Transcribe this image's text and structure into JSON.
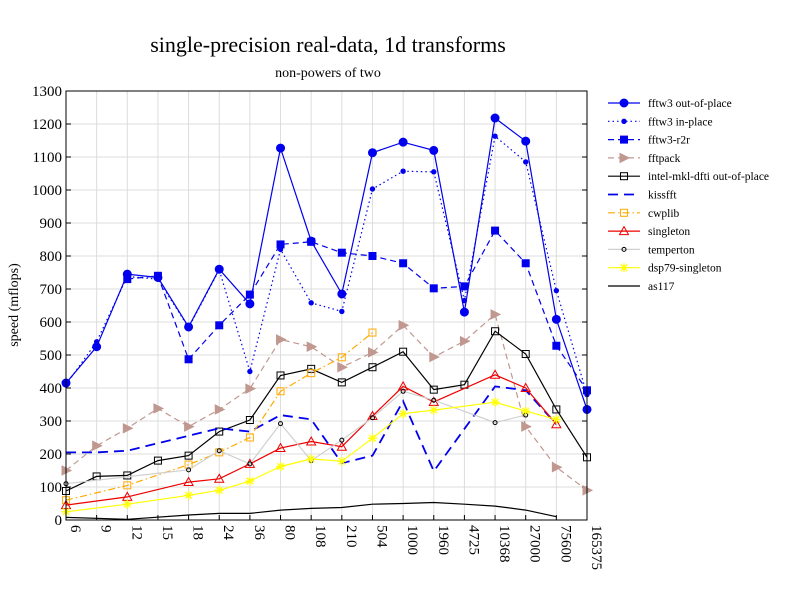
{
  "chart_data": {
    "type": "line",
    "title": "single-precision real-data, 1d transforms",
    "subtitle": "non-powers of two",
    "xlabel": "",
    "ylabel": "speed (mflops)",
    "ylim": [
      0,
      1300
    ],
    "yticks": [
      0,
      100,
      200,
      300,
      400,
      500,
      600,
      700,
      800,
      900,
      1000,
      1100,
      1200,
      1300
    ],
    "grid": true,
    "legend_position": "right",
    "categories": [
      "6",
      "9",
      "12",
      "15",
      "18",
      "24",
      "36",
      "80",
      "108",
      "210",
      "504",
      "1000",
      "1960",
      "4725",
      "10368",
      "27000",
      "75600",
      "165375"
    ],
    "series": [
      {
        "name": "fftw3 out-of-place",
        "color": "#0000ee",
        "dash": "solid",
        "marker": "circle-filled",
        "values": [
          415,
          525,
          745,
          735,
          585,
          760,
          655,
          1127,
          845,
          685,
          1113,
          1145,
          1120,
          630,
          1218,
          1148,
          608,
          335
        ]
      },
      {
        "name": "fftw3 in-place",
        "color": "#0000ee",
        "dash": "dot",
        "marker": "dot",
        "values": [
          410,
          540,
          738,
          730,
          583,
          758,
          450,
          820,
          658,
          632,
          1003,
          1057,
          1055,
          665,
          1163,
          1085,
          695,
          380
        ]
      },
      {
        "name": "fftw3-r2r",
        "color": "#0000ee",
        "dash": "dash",
        "marker": "square-filled",
        "values": [
          null,
          null,
          730,
          740,
          487,
          590,
          683,
          835,
          843,
          810,
          800,
          778,
          702,
          708,
          877,
          778,
          528,
          393
        ]
      },
      {
        "name": "fftpack",
        "color": "#c09890",
        "dash": "dash",
        "marker": "triangle-right",
        "values": [
          150,
          225,
          278,
          338,
          283,
          335,
          398,
          547,
          525,
          463,
          508,
          590,
          494,
          542,
          623,
          283,
          160,
          90
        ]
      },
      {
        "name": "intel-mkl-dfti out-of-place",
        "color": "#000000",
        "dash": "solid",
        "marker": "square-open",
        "values": [
          88,
          132,
          135,
          180,
          195,
          268,
          303,
          438,
          458,
          417,
          463,
          510,
          395,
          410,
          572,
          503,
          335,
          190
        ]
      },
      {
        "name": "kissfft",
        "color": "#0000ee",
        "dash": "longdash",
        "marker": "none",
        "values": [
          205,
          205,
          210,
          null,
          null,
          278,
          268,
          318,
          305,
          172,
          195,
          360,
          148,
          null,
          405,
          393,
          290,
          null
        ]
      },
      {
        "name": "cwplib",
        "color": "#ffaa00",
        "dash": "dashdot",
        "marker": "square-open",
        "values": [
          60,
          null,
          105,
          null,
          168,
          205,
          250,
          390,
          445,
          493,
          568,
          null,
          null,
          null,
          null,
          null,
          null,
          null
        ]
      },
      {
        "name": "singleton",
        "color": "#ee0000",
        "dash": "solid",
        "marker": "triangle-open",
        "values": [
          45,
          null,
          70,
          null,
          115,
          125,
          170,
          218,
          238,
          222,
          315,
          405,
          358,
          null,
          440,
          400,
          290,
          null
        ]
      },
      {
        "name": "temperton",
        "color": "#d0d0d0",
        "dash": "solid",
        "marker": "circle-open",
        "values": [
          110,
          null,
          null,
          null,
          152,
          210,
          170,
          292,
          180,
          242,
          310,
          390,
          363,
          null,
          295,
          318,
          null,
          null
        ]
      },
      {
        "name": "dsp79-singleton",
        "color": "#ffff00",
        "dash": "solid",
        "marker": "asterisk",
        "values": [
          25,
          null,
          48,
          null,
          75,
          90,
          118,
          162,
          185,
          178,
          248,
          322,
          333,
          null,
          357,
          330,
          305,
          null
        ]
      },
      {
        "name": "as117",
        "color": "#000000",
        "dash": "solid",
        "marker": "none",
        "values": [
          8,
          null,
          2,
          null,
          15,
          20,
          20,
          30,
          35,
          38,
          48,
          50,
          53,
          48,
          42,
          30,
          10,
          null
        ]
      }
    ]
  }
}
